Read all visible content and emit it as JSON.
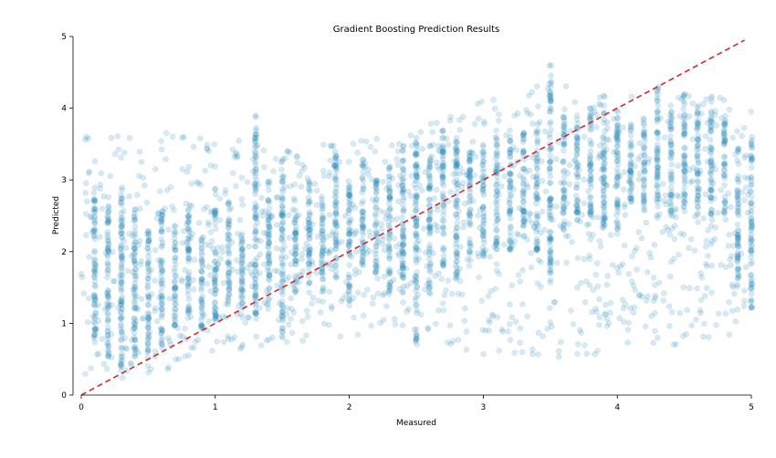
{
  "chart_data": {
    "type": "scatter",
    "title": "Gradient Boosting Prediction Results",
    "xlabel": "Measured",
    "ylabel": "Predicted",
    "xlim": [
      0,
      5
    ],
    "ylim": [
      0,
      5
    ],
    "xticks": [
      "0",
      "1",
      "2",
      "3",
      "4",
      "5"
    ],
    "yticks": [
      "0",
      "1",
      "2",
      "3",
      "4",
      "5"
    ],
    "grid": false,
    "point_color": "#1f84b8",
    "point_opacity": 0.18,
    "reference_line": {
      "x": [
        0,
        4.95
      ],
      "y": [
        0,
        4.95
      ],
      "style": "dashed",
      "color": "#d62728"
    },
    "series": [
      {
        "description": "dense vertical stripes at discrete measured values: [measured, predicted_min, predicted_max]",
        "stripes": [
          [
            0.1,
            0.7,
            2.9
          ],
          [
            0.2,
            0.5,
            2.8
          ],
          [
            0.3,
            0.3,
            2.9
          ],
          [
            0.4,
            0.5,
            2.6
          ],
          [
            0.5,
            0.5,
            2.3
          ],
          [
            0.6,
            0.7,
            2.6
          ],
          [
            0.7,
            0.9,
            2.4
          ],
          [
            0.8,
            1.0,
            2.6
          ],
          [
            0.9,
            0.9,
            2.2
          ],
          [
            1.0,
            1.0,
            2.6
          ],
          [
            1.1,
            1.2,
            2.7
          ],
          [
            1.2,
            1.2,
            2.3
          ],
          [
            1.3,
            1.1,
            3.9
          ],
          [
            1.4,
            1.2,
            3.0
          ],
          [
            1.5,
            0.8,
            3.3
          ],
          [
            1.6,
            1.4,
            2.6
          ],
          [
            1.7,
            1.5,
            3.0
          ],
          [
            1.8,
            1.3,
            2.8
          ],
          [
            1.9,
            1.6,
            3.4
          ],
          [
            2.0,
            1.3,
            3.0
          ],
          [
            2.1,
            1.8,
            3.3
          ],
          [
            2.2,
            1.7,
            3.0
          ],
          [
            2.3,
            1.3,
            3.2
          ],
          [
            2.4,
            1.4,
            3.5
          ],
          [
            2.5,
            0.7,
            3.6
          ],
          [
            2.6,
            1.4,
            3.5
          ],
          [
            2.7,
            1.8,
            3.7
          ],
          [
            2.8,
            1.5,
            3.6
          ],
          [
            2.9,
            1.8,
            3.4
          ],
          [
            3.0,
            1.9,
            3.5
          ],
          [
            3.1,
            2.0,
            3.6
          ],
          [
            3.2,
            2.0,
            3.7
          ],
          [
            3.3,
            2.2,
            3.7
          ],
          [
            3.4,
            2.0,
            3.7
          ],
          [
            3.5,
            1.5,
            4.6
          ],
          [
            3.6,
            2.3,
            3.9
          ],
          [
            3.7,
            2.4,
            3.9
          ],
          [
            3.8,
            2.5,
            4.1
          ],
          [
            3.9,
            2.3,
            4.2
          ],
          [
            4.0,
            2.2,
            4.0
          ],
          [
            4.1,
            2.6,
            3.8
          ],
          [
            4.2,
            2.5,
            3.9
          ],
          [
            4.3,
            2.4,
            4.3
          ],
          [
            4.4,
            2.5,
            4.0
          ],
          [
            4.5,
            2.6,
            4.2
          ],
          [
            4.6,
            2.4,
            4.1
          ],
          [
            4.7,
            2.5,
            4.2
          ],
          [
            4.8,
            2.5,
            3.9
          ],
          [
            4.9,
            1.4,
            3.5
          ],
          [
            5.0,
            1.2,
            3.6
          ]
        ],
        "sparse_band": [
          [
            0.0,
            0.3,
            3.6
          ],
          [
            0.5,
            0.2,
            3.7
          ],
          [
            1.0,
            0.6,
            3.6
          ],
          [
            1.5,
            0.7,
            3.5
          ],
          [
            2.0,
            0.8,
            3.5
          ],
          [
            2.5,
            0.9,
            3.8
          ],
          [
            3.0,
            0.5,
            4.1
          ],
          [
            3.5,
            0.5,
            4.4
          ],
          [
            4.0,
            0.6,
            4.2
          ],
          [
            4.5,
            0.6,
            4.2
          ],
          [
            5.0,
            0.8,
            4.1
          ]
        ]
      }
    ]
  }
}
